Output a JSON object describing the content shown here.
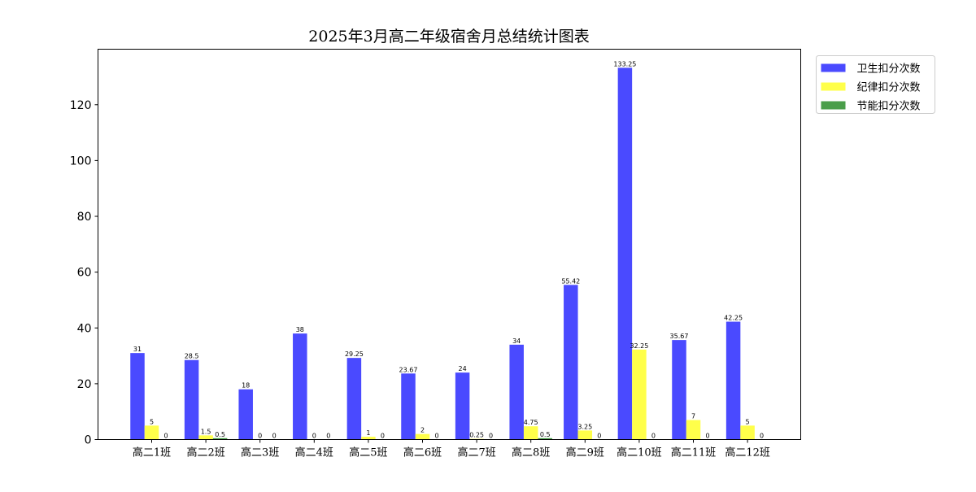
{
  "chart_data": {
    "type": "bar",
    "title": "2025年3月高二年级宿舍月总结统计图表",
    "xlabel": "",
    "ylabel": "",
    "categories": [
      "高二1班",
      "高二2班",
      "高二3班",
      "高二4班",
      "高二5班",
      "高二6班",
      "高二7班",
      "高二8班",
      "高二9班",
      "高二10班",
      "高二11班",
      "高二12班"
    ],
    "series": [
      {
        "name": "卫生扣分次数",
        "color": "#4a4aff",
        "values": [
          31,
          28.5,
          18,
          38,
          29.25,
          23.67,
          24,
          34,
          55.42,
          133.25,
          35.67,
          42.25
        ],
        "labels": [
          "31",
          "28.5",
          "18",
          "38",
          "29.25",
          "23.67",
          "24",
          "34",
          "55.42",
          "133.25",
          "35.67",
          "42.25"
        ]
      },
      {
        "name": "纪律扣分次数",
        "color": "#ffff4a",
        "values": [
          5,
          1.5,
          0,
          0,
          1,
          2,
          0.25,
          4.75,
          3.25,
          32.25,
          7,
          5
        ],
        "labels": [
          "5",
          "1.5",
          "0",
          "0",
          "1",
          "2",
          "0.25",
          "4.75",
          "3.25",
          "32.25",
          "7",
          "5"
        ]
      },
      {
        "name": "节能扣分次数",
        "color": "#4a9e4a",
        "values": [
          0,
          0.5,
          0,
          0,
          0,
          0,
          0,
          0.5,
          0,
          0,
          0,
          0
        ],
        "labels": [
          "0",
          "0.5",
          "0",
          "0",
          "0",
          "0",
          "0",
          "0.5",
          "0",
          "0",
          "0",
          "0"
        ]
      }
    ],
    "ylim": [
      0,
      139.9
    ],
    "yticks": [
      0,
      20,
      40,
      60,
      80,
      100,
      120
    ],
    "ytick_labels": [
      "0",
      "20",
      "40",
      "60",
      "80",
      "100",
      "120"
    ],
    "grid": false,
    "legend_position": "outside-top-right"
  }
}
